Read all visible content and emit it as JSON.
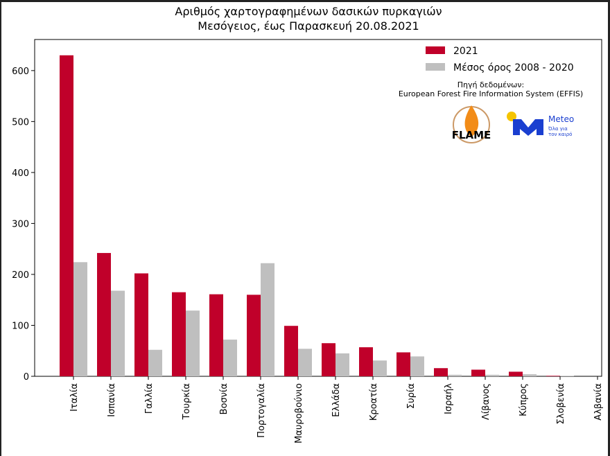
{
  "chart_data": {
    "type": "bar",
    "title": "Αριθμός χαρτογραφημένων δασικών πυρκαγιών",
    "subtitle": "Μεσόγειος, έως Παρασκευή 20.08.2021",
    "categories": [
      "Ιταλία",
      "Ισπανία",
      "Γαλλία",
      "Τουρκία",
      "Βοσνία",
      "Πορτογαλία",
      "Μαυροβούνιο",
      "Ελλάδα",
      "Κροατία",
      "Συρία",
      "Ισραήλ",
      "Λίβανος",
      "Κύπρος",
      "Σλοβενία",
      "Αλβανία"
    ],
    "series": [
      {
        "name": "2021",
        "color": "#c0002a",
        "values": [
          630,
          242,
          202,
          165,
          161,
          160,
          99,
          65,
          57,
          47,
          16,
          13,
          9,
          1,
          0
        ]
      },
      {
        "name": "Μέσος όρος 2008 - 2020",
        "color": "#bfbfbf",
        "values": [
          224,
          168,
          52,
          129,
          72,
          222,
          54,
          45,
          31,
          39,
          3,
          3,
          4,
          1,
          0
        ]
      }
    ],
    "ylim": [
      0,
      661
    ],
    "yticks": [
      0,
      100,
      200,
      300,
      400,
      500,
      600
    ],
    "legend": "upper right",
    "source": [
      "Πηγή δεδομένων:",
      "European Forest Fire Information System (EFFIS)"
    ],
    "logos": {
      "flame": "FLAME",
      "meteo": "Meteo",
      "meteo_tagline": [
        "Όλα για",
        "τον καιρό"
      ]
    }
  }
}
